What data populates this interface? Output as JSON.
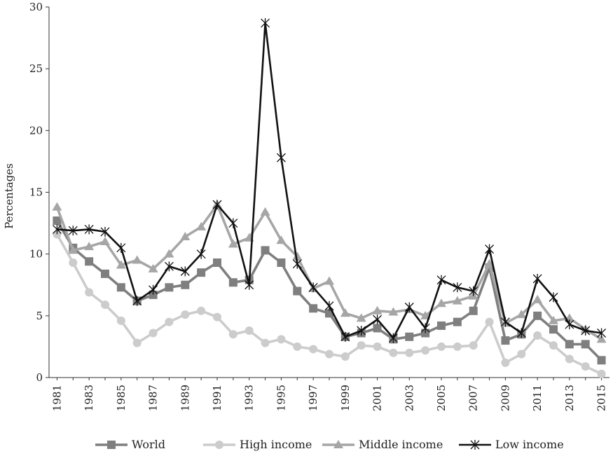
{
  "chart_data": {
    "type": "line",
    "title": "",
    "xlabel": "",
    "ylabel": "Percentages",
    "ylim": [
      0,
      30
    ],
    "yticks": [
      "0",
      "5",
      "10",
      "15",
      "20",
      "25",
      "30"
    ],
    "grid": false,
    "legend_position": "bottom",
    "x": [
      1981,
      1982,
      1983,
      1984,
      1985,
      1986,
      1987,
      1988,
      1989,
      1990,
      1991,
      1992,
      1993,
      1994,
      1995,
      1996,
      1997,
      1998,
      1999,
      2000,
      2001,
      2002,
      2003,
      2004,
      2005,
      2006,
      2007,
      2008,
      2009,
      2010,
      2011,
      2012,
      2013,
      2014,
      2015
    ],
    "xtick_labels": [
      "1981",
      "1983",
      "1985",
      "1987",
      "1989",
      "1991",
      "1993",
      "1995",
      "1997",
      "1999",
      "2001",
      "2003",
      "2005",
      "2007",
      "2009",
      "2011",
      "2013",
      "2015"
    ],
    "series": [
      {
        "name": "World",
        "color": "#7f7f7f",
        "marker": "square",
        "values": [
          12.7,
          10.5,
          9.4,
          8.4,
          7.3,
          6.2,
          6.7,
          7.3,
          7.5,
          8.5,
          9.3,
          7.7,
          7.9,
          10.3,
          9.3,
          7.0,
          5.6,
          5.2,
          3.3,
          3.6,
          4.0,
          3.1,
          3.3,
          3.6,
          4.2,
          4.5,
          5.4,
          8.9,
          3.0,
          3.5,
          5.0,
          3.9,
          2.7,
          2.7,
          1.4
        ]
      },
      {
        "name": "High income",
        "color": "#cccccc",
        "marker": "circle",
        "values": [
          11.6,
          9.3,
          6.9,
          5.9,
          4.6,
          2.8,
          3.6,
          4.5,
          5.1,
          5.4,
          4.9,
          3.5,
          3.8,
          2.8,
          3.1,
          2.5,
          2.3,
          1.9,
          1.7,
          2.6,
          2.5,
          2.0,
          2.0,
          2.2,
          2.5,
          2.5,
          2.6,
          4.5,
          1.2,
          1.9,
          3.4,
          2.6,
          1.5,
          0.9,
          0.3
        ]
      },
      {
        "name": "Middle income",
        "color": "#a6a6a6",
        "marker": "triangle",
        "values": [
          13.8,
          10.3,
          10.6,
          11.0,
          9.1,
          9.5,
          8.8,
          10.0,
          11.4,
          12.2,
          14.0,
          10.8,
          11.3,
          13.4,
          11.1,
          9.8,
          7.2,
          7.8,
          5.2,
          4.8,
          5.4,
          5.3,
          5.5,
          5.0,
          6.0,
          6.2,
          6.6,
          9.2,
          4.4,
          5.1,
          6.3,
          4.6,
          4.8,
          3.9,
          3.1
        ]
      },
      {
        "name": "Low income",
        "color": "#111111",
        "marker": "asterisk",
        "values": [
          12.0,
          11.9,
          12.0,
          11.8,
          10.5,
          6.2,
          7.1,
          9.0,
          8.6,
          10.0,
          14.0,
          12.5,
          7.5,
          28.7,
          17.8,
          9.2,
          7.3,
          5.8,
          3.3,
          3.8,
          4.7,
          3.2,
          5.7,
          4.0,
          7.9,
          7.3,
          7.0,
          10.4,
          4.5,
          3.6,
          8.0,
          6.5,
          4.3,
          3.8,
          3.6
        ]
      }
    ]
  }
}
